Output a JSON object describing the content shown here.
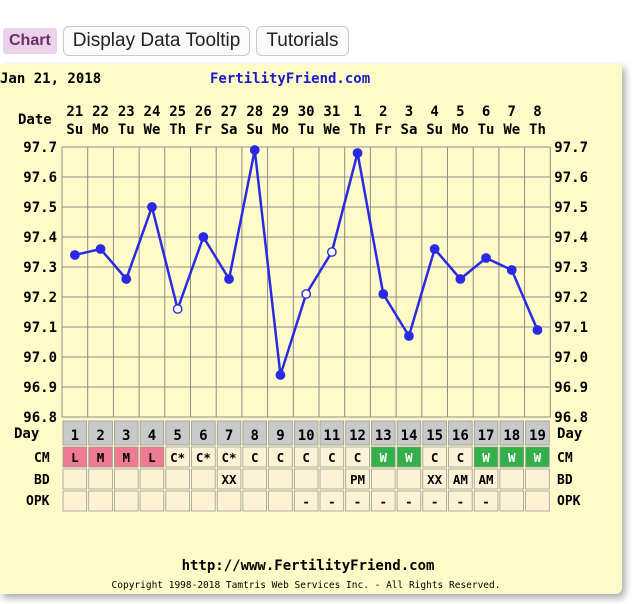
{
  "toolbar": {
    "chart_label": "Chart",
    "tooltip_label": "Display Data Tooltip",
    "tutorials_label": "Tutorials"
  },
  "header": {
    "date": "Jan 21, 2018",
    "site": "FertilityFriend.com"
  },
  "footer": {
    "url": "http://www.FertilityFriend.com",
    "copyright": "Copyright 1998-2018 Tamtris Web Services Inc. - All Rights Reserved."
  },
  "row_labels": {
    "date": "Date",
    "day": "Day",
    "cm": "CM",
    "bd": "BD",
    "opk": "OPK"
  },
  "colors": {
    "line": "#2a2ae6",
    "cm_red": "#f07a92",
    "cm_green": "#32b04a",
    "day_cell": "#c9c9c9",
    "cell": "#fdf2d6",
    "panel": "#fffbc8",
    "site_blue": "#1a1ac8"
  },
  "chart_data": {
    "type": "line",
    "ylabel": "",
    "ylim": [
      96.8,
      97.7
    ],
    "y_ticks": [
      "97.7",
      "97.6",
      "97.5",
      "97.4",
      "97.3",
      "97.2",
      "97.1",
      "97.0",
      "96.9",
      "96.8"
    ],
    "dates": [
      "21",
      "22",
      "23",
      "24",
      "25",
      "26",
      "27",
      "28",
      "29",
      "30",
      "31",
      "1",
      "2",
      "3",
      "4",
      "5",
      "6",
      "7",
      "8"
    ],
    "weekdays": [
      "Su",
      "Mo",
      "Tu",
      "We",
      "Th",
      "Fr",
      "Sa",
      "Su",
      "Mo",
      "Tu",
      "We",
      "Th",
      "Fr",
      "Sa",
      "Su",
      "Mo",
      "Tu",
      "We",
      "Th"
    ],
    "days": [
      "1",
      "2",
      "3",
      "4",
      "5",
      "6",
      "7",
      "8",
      "9",
      "10",
      "11",
      "12",
      "13",
      "14",
      "15",
      "16",
      "17",
      "18",
      "19"
    ],
    "temps": [
      97.34,
      97.36,
      97.26,
      97.5,
      97.16,
      97.4,
      97.26,
      97.69,
      96.94,
      97.21,
      97.35,
      97.68,
      97.21,
      97.07,
      97.36,
      97.26,
      97.33,
      97.29,
      97.09
    ],
    "open_points": [
      false,
      false,
      false,
      false,
      true,
      false,
      false,
      false,
      false,
      true,
      true,
      false,
      false,
      false,
      false,
      false,
      false,
      false,
      false
    ],
    "cm": [
      "L",
      "M",
      "M",
      "L",
      "C*",
      "C*",
      "C*",
      "C",
      "C",
      "C",
      "C",
      "C",
      "W",
      "W",
      "C",
      "C",
      "W",
      "W",
      "W"
    ],
    "cm_colors": [
      "red",
      "red",
      "red",
      "red",
      "",
      "",
      "",
      "",
      "",
      "",
      "",
      "",
      "green",
      "green",
      "",
      "",
      "green",
      "green",
      "green"
    ],
    "bd": [
      "",
      "",
      "",
      "",
      "",
      "",
      "XX",
      "",
      "",
      "",
      "",
      "PM",
      "",
      "",
      "XX",
      "AM",
      "AM",
      "",
      ""
    ],
    "opk": [
      "",
      "",
      "",
      "",
      "",
      "",
      "",
      "",
      "",
      "-",
      "-",
      "-",
      "-",
      "-",
      "-",
      "-",
      "-",
      "",
      ""
    ]
  }
}
